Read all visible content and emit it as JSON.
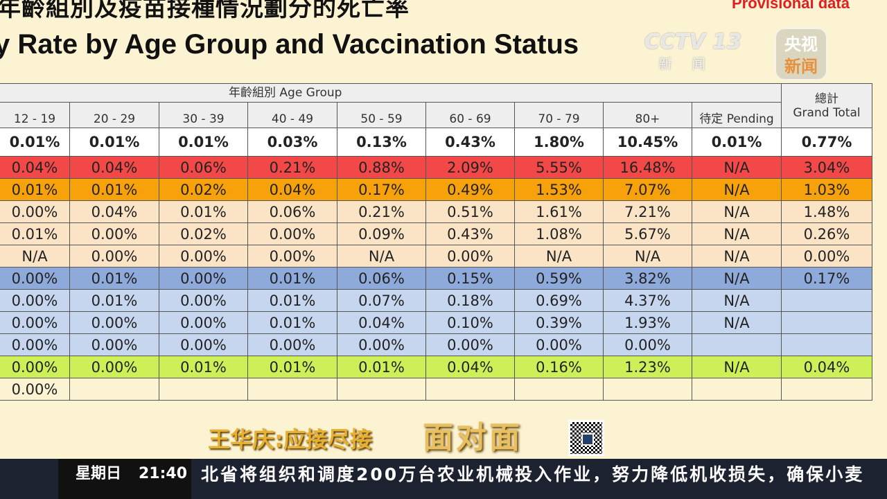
{
  "title_zh": "年齡組別及疫苗接種情況劃分的死亡率",
  "title_en": "y Rate by Age Group and Vaccination Status",
  "provisional": "Provisional data",
  "table": {
    "group_header": "年齡組別 Age Group",
    "total_header_zh": "總計",
    "total_header_en": "Grand Total",
    "columns": [
      "12 - 19",
      "20 - 29",
      "30 - 39",
      "40 - 49",
      "50 - 59",
      "60 - 69",
      "70 - 79",
      "80+",
      "待定 Pending"
    ],
    "rows": [
      {
        "style": "white",
        "cells": [
          "0.01%",
          "0.01%",
          "0.01%",
          "0.03%",
          "0.13%",
          "0.43%",
          "1.80%",
          "10.45%",
          "0.01%",
          "0.77%"
        ]
      },
      {
        "style": "red",
        "cells": [
          "0.04%",
          "0.04%",
          "0.06%",
          "0.21%",
          "0.88%",
          "2.09%",
          "5.55%",
          "16.48%",
          "N/A",
          "3.04%"
        ]
      },
      {
        "style": "orange",
        "cells": [
          "0.01%",
          "0.01%",
          "0.02%",
          "0.04%",
          "0.17%",
          "0.49%",
          "1.53%",
          "7.07%",
          "N/A",
          "1.03%"
        ]
      },
      {
        "style": "peach",
        "cells": [
          "0.00%",
          "0.04%",
          "0.01%",
          "0.06%",
          "0.21%",
          "0.51%",
          "1.61%",
          "7.21%",
          "N/A",
          "1.48%"
        ]
      },
      {
        "style": "peach",
        "cells": [
          "0.01%",
          "0.00%",
          "0.02%",
          "0.00%",
          "0.09%",
          "0.43%",
          "1.08%",
          "5.67%",
          "N/A",
          "0.26%"
        ]
      },
      {
        "style": "peach",
        "cells": [
          "N/A",
          "0.00%",
          "0.00%",
          "0.00%",
          "N/A",
          "0.00%",
          "N/A",
          "N/A",
          "N/A",
          "0.00%"
        ]
      },
      {
        "style": "blue",
        "cells": [
          "0.00%",
          "0.01%",
          "0.00%",
          "0.01%",
          "0.06%",
          "0.15%",
          "0.59%",
          "3.82%",
          "N/A",
          "0.17%"
        ]
      },
      {
        "style": "lightblue",
        "cells": [
          "0.00%",
          "0.01%",
          "0.00%",
          "0.01%",
          "0.07%",
          "0.18%",
          "0.69%",
          "4.37%",
          "N/A",
          ""
        ]
      },
      {
        "style": "lightblue",
        "cells": [
          "0.00%",
          "0.00%",
          "0.00%",
          "0.01%",
          "0.04%",
          "0.10%",
          "0.39%",
          "1.93%",
          "N/A",
          ""
        ]
      },
      {
        "style": "lightblue",
        "cells": [
          "0.00%",
          "0.00%",
          "0.00%",
          "0.00%",
          "0.00%",
          "0.00%",
          "0.00%",
          "0.00%",
          "",
          ""
        ]
      },
      {
        "style": "green",
        "cells": [
          "0.00%",
          "0.00%",
          "0.01%",
          "0.01%",
          "0.01%",
          "0.04%",
          "0.16%",
          "1.23%",
          "N/A",
          "0.04%"
        ]
      },
      {
        "style": "cream",
        "cells": [
          "0.00%",
          "",
          "",
          "",
          "",
          "",
          "",
          "",
          "",
          ""
        ]
      }
    ]
  },
  "colors": {
    "red": "#f24848",
    "orange": "#f7a20a",
    "peach": "#fbe3c6",
    "blue": "#8eaadb",
    "lightblue": "#c6d6ef",
    "green": "#cdef58"
  },
  "overlay": {
    "channel_logo": "CCTV 13",
    "channel_sub": "新闻",
    "badge_top": "央视",
    "badge_bottom": "新闻",
    "caption_1": "王华庆:应接尽接",
    "caption_2": "面对面",
    "day": "星期日",
    "time": "21:40",
    "ticker": "北省将组织和调度200万台农业机械投入作业，努力降低机收损失，确保小麦"
  }
}
